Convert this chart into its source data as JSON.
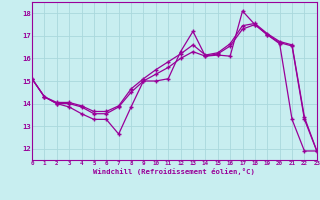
{
  "bg_color": "#c8eef0",
  "grid_color": "#aad8dc",
  "line_color": "#990099",
  "xlabel": "Windchill (Refroidissement éolien,°C)",
  "xlim": [
    0,
    23
  ],
  "ylim": [
    11.5,
    18.5
  ],
  "yticks": [
    12,
    13,
    14,
    15,
    16,
    17,
    18
  ],
  "xticks": [
    0,
    1,
    2,
    3,
    4,
    5,
    6,
    7,
    8,
    9,
    10,
    11,
    12,
    13,
    14,
    15,
    16,
    17,
    18,
    19,
    20,
    21,
    22,
    23
  ],
  "line1_x": [
    0,
    1,
    2,
    3,
    4,
    5,
    6,
    7,
    8,
    9,
    10,
    11,
    12,
    13,
    14,
    15,
    16,
    17,
    18,
    19,
    20,
    21,
    22,
    23
  ],
  "line1_y": [
    15.1,
    14.3,
    14.0,
    13.85,
    13.55,
    13.3,
    13.3,
    12.65,
    13.85,
    15.0,
    15.0,
    15.1,
    16.3,
    17.2,
    16.1,
    16.15,
    16.1,
    18.1,
    17.5,
    17.05,
    16.65,
    13.3,
    11.9,
    11.9
  ],
  "line2_x": [
    0,
    1,
    2,
    3,
    4,
    5,
    6,
    7,
    8,
    9,
    10,
    11,
    12,
    13,
    14,
    15,
    16,
    17,
    18,
    19,
    20,
    21,
    22,
    23
  ],
  "line2_y": [
    15.1,
    14.3,
    14.0,
    14.0,
    13.85,
    13.55,
    13.55,
    13.85,
    14.5,
    15.0,
    15.3,
    15.6,
    16.0,
    16.3,
    16.1,
    16.2,
    16.55,
    17.3,
    17.5,
    17.05,
    16.7,
    16.55,
    13.3,
    11.9
  ],
  "line3_x": [
    0,
    1,
    2,
    3,
    4,
    5,
    6,
    7,
    8,
    9,
    10,
    11,
    12,
    13,
    14,
    15,
    16,
    17,
    18,
    19,
    20,
    21,
    22,
    23
  ],
  "line3_y": [
    15.1,
    14.3,
    14.05,
    14.05,
    13.9,
    13.65,
    13.65,
    13.9,
    14.65,
    15.1,
    15.5,
    15.85,
    16.2,
    16.6,
    16.15,
    16.25,
    16.65,
    17.45,
    17.55,
    17.1,
    16.75,
    16.6,
    13.4,
    11.9
  ]
}
